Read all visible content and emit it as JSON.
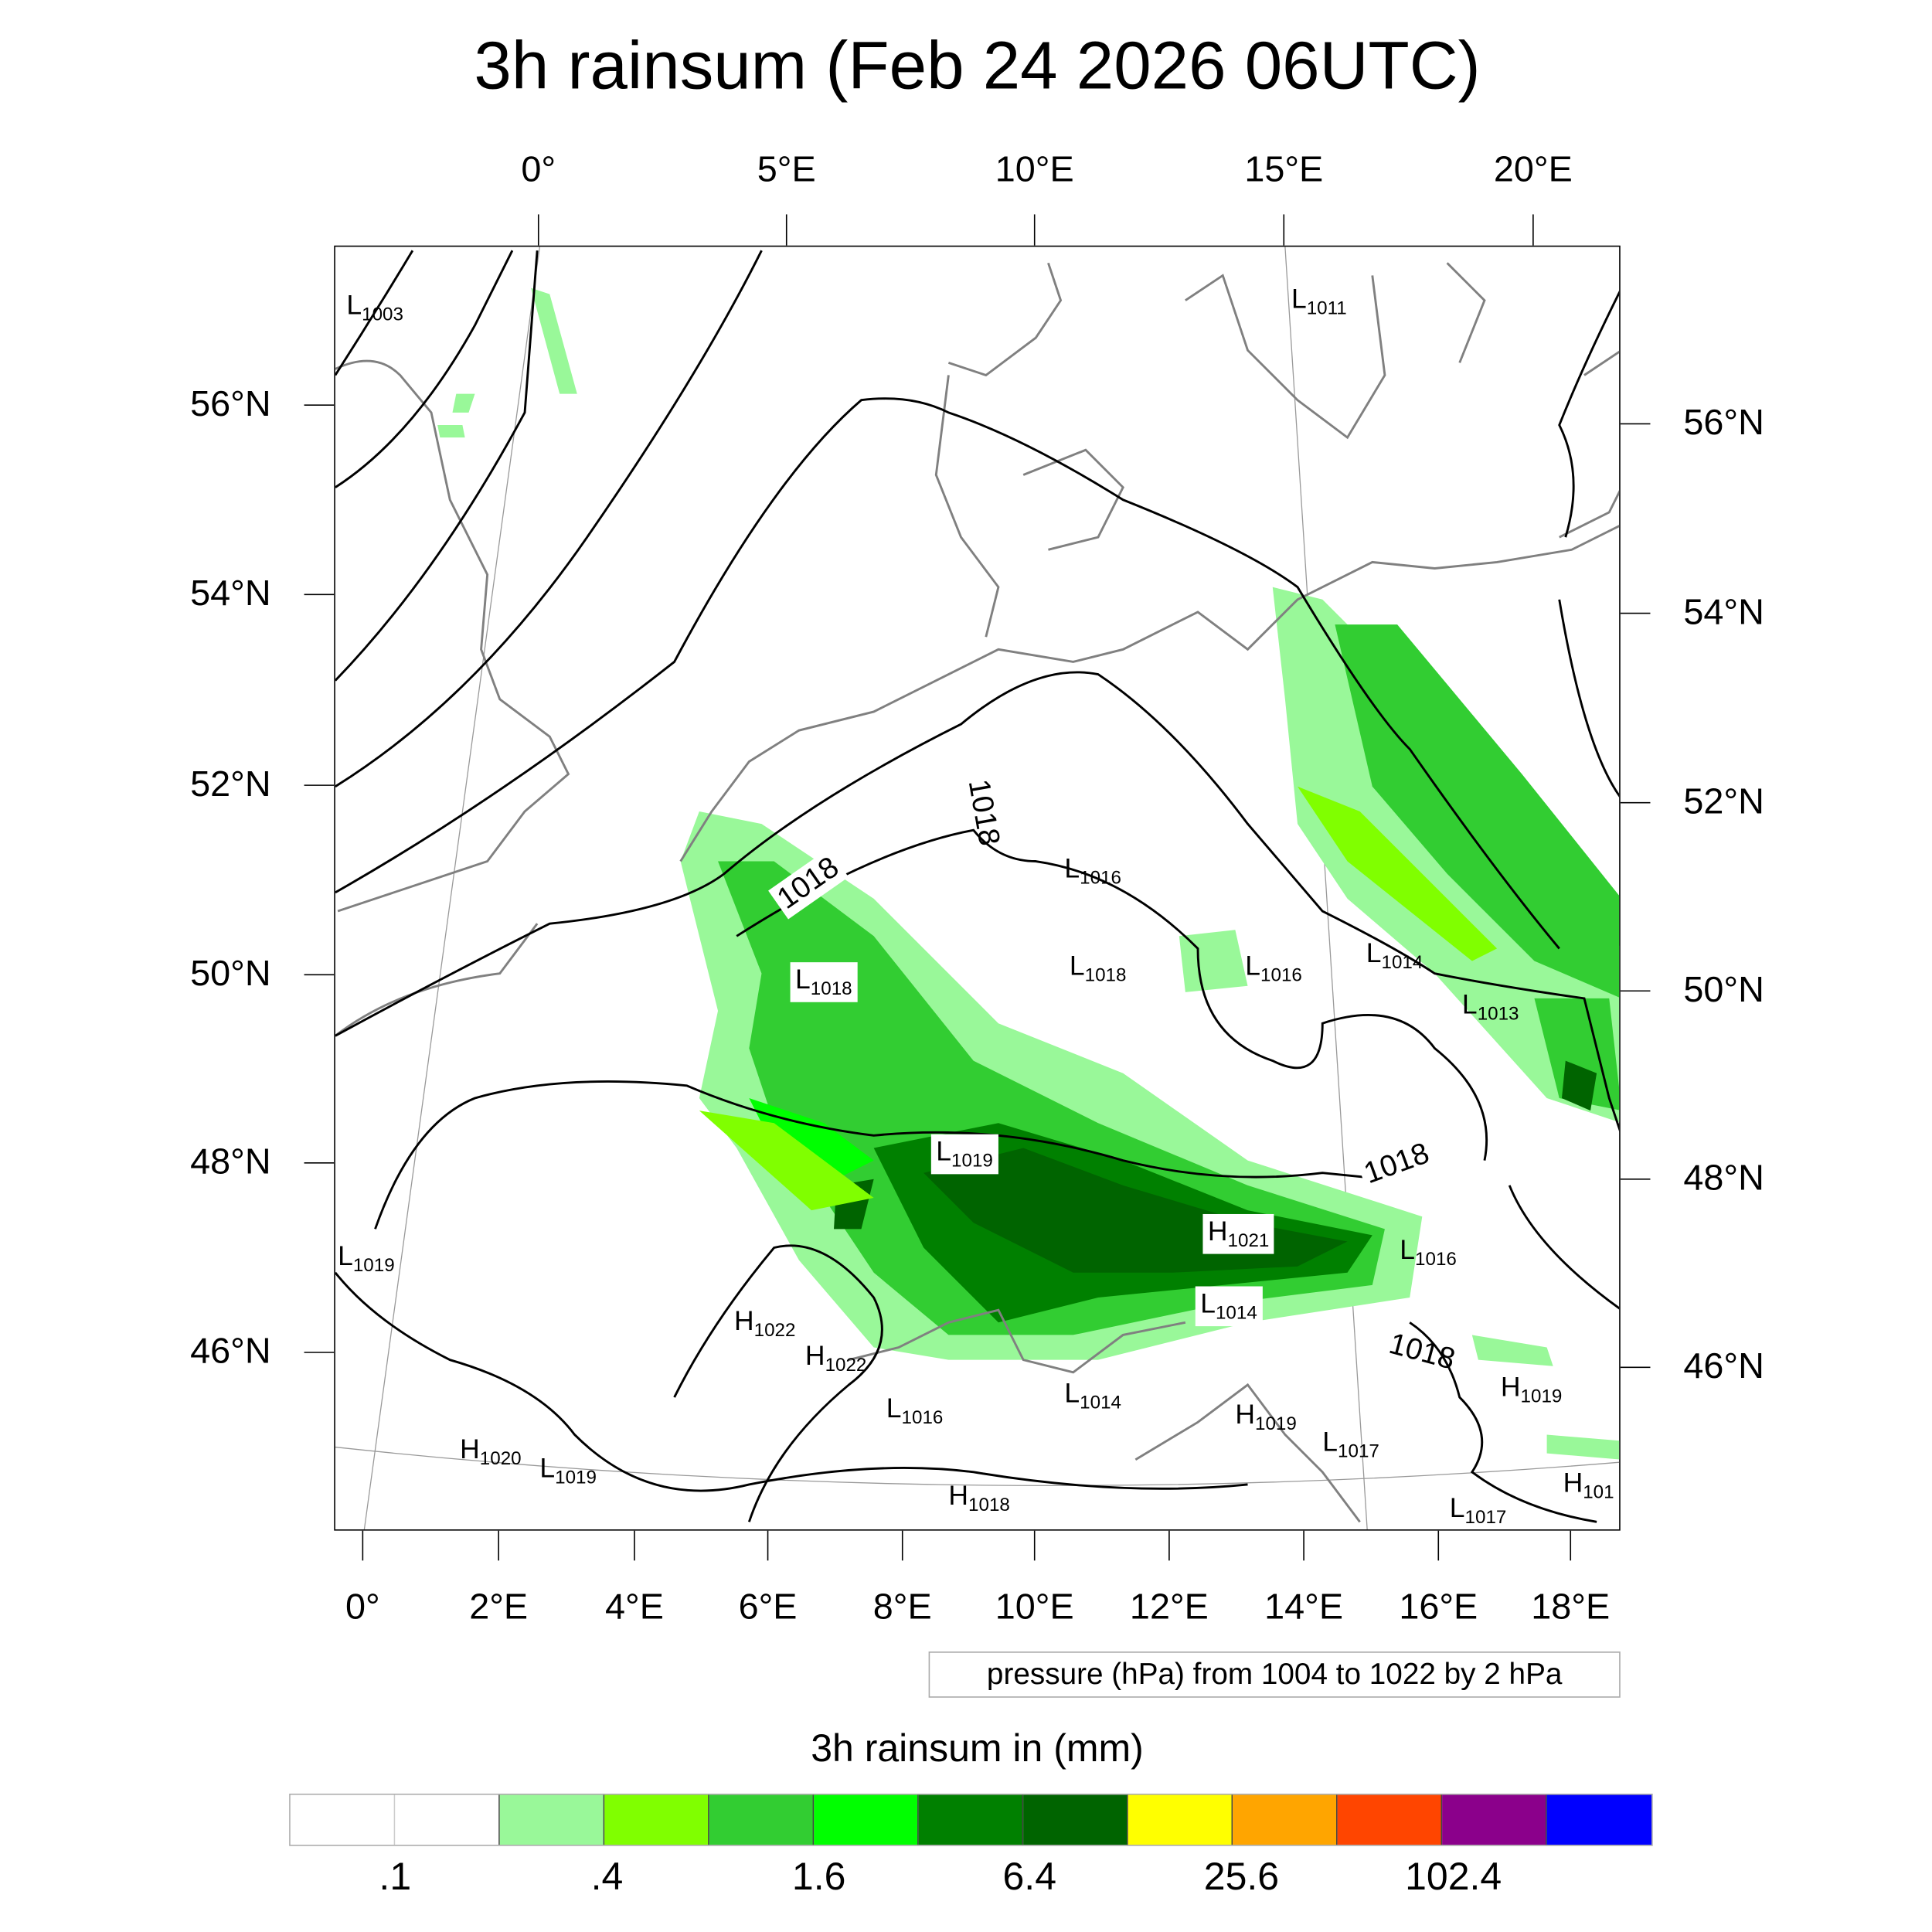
{
  "title": "3h rainsum (Feb 24 2026 06UTC)",
  "axes": {
    "top_lon": [
      "0°",
      "5°E",
      "10°E",
      "15°E",
      "20°E"
    ],
    "bottom_lon": [
      "0°",
      "2°E",
      "4°E",
      "6°E",
      "8°E",
      "10°E",
      "12°E",
      "14°E",
      "16°E",
      "18°E"
    ],
    "left_lat": [
      "56°N",
      "54°N",
      "52°N",
      "50°N",
      "48°N",
      "46°N"
    ],
    "right_lat": [
      "56°N",
      "54°N",
      "52°N",
      "50°N",
      "48°N",
      "46°N"
    ]
  },
  "pressure_centers": [
    {
      "type": "L",
      "value": "1003"
    },
    {
      "type": "L",
      "value": "1011"
    },
    {
      "type": "L",
      "value": "1016"
    },
    {
      "type": "L",
      "value": "1018"
    },
    {
      "type": "L",
      "value": "1018"
    },
    {
      "type": "L",
      "value": "1016"
    },
    {
      "type": "L",
      "value": "1014"
    },
    {
      "type": "L",
      "value": "1013"
    },
    {
      "type": "L",
      "value": "1019"
    },
    {
      "type": "H",
      "value": "1021"
    },
    {
      "type": "L",
      "value": "1016"
    },
    {
      "type": "L",
      "value": "1014"
    },
    {
      "type": "L",
      "value": "1019"
    },
    {
      "type": "H",
      "value": "1022"
    },
    {
      "type": "H",
      "value": "1022"
    },
    {
      "type": "L",
      "value": "1016"
    },
    {
      "type": "L",
      "value": "1014"
    },
    {
      "type": "H",
      "value": "1019"
    },
    {
      "type": "L",
      "value": "1017"
    },
    {
      "type": "H",
      "value": "1019"
    },
    {
      "type": "H",
      "value": "1020"
    },
    {
      "type": "L",
      "value": "1019"
    },
    {
      "type": "H",
      "value": "1018"
    },
    {
      "type": "L",
      "value": "1017"
    },
    {
      "type": "H",
      "value": "101"
    }
  ],
  "contour_labels": [
    "1018",
    "1018",
    "1018",
    "1018"
  ],
  "pressure_legend": "pressure (hPa) from 1004 to 1022 by 2 hPa",
  "colorbar": {
    "title": "3h rainsum in (mm)",
    "labels": [
      ".1",
      ".4",
      "1.6",
      "6.4",
      "25.6",
      "102.4"
    ],
    "colors": [
      "#ffffff",
      "#ffffff",
      "#99f899",
      "#80ff00",
      "#32cd32",
      "#00ff00",
      "#008000",
      "#006400",
      "#ffff00",
      "#ffa500",
      "#ff4500",
      "#8b008b",
      "#0000ff"
    ]
  }
}
